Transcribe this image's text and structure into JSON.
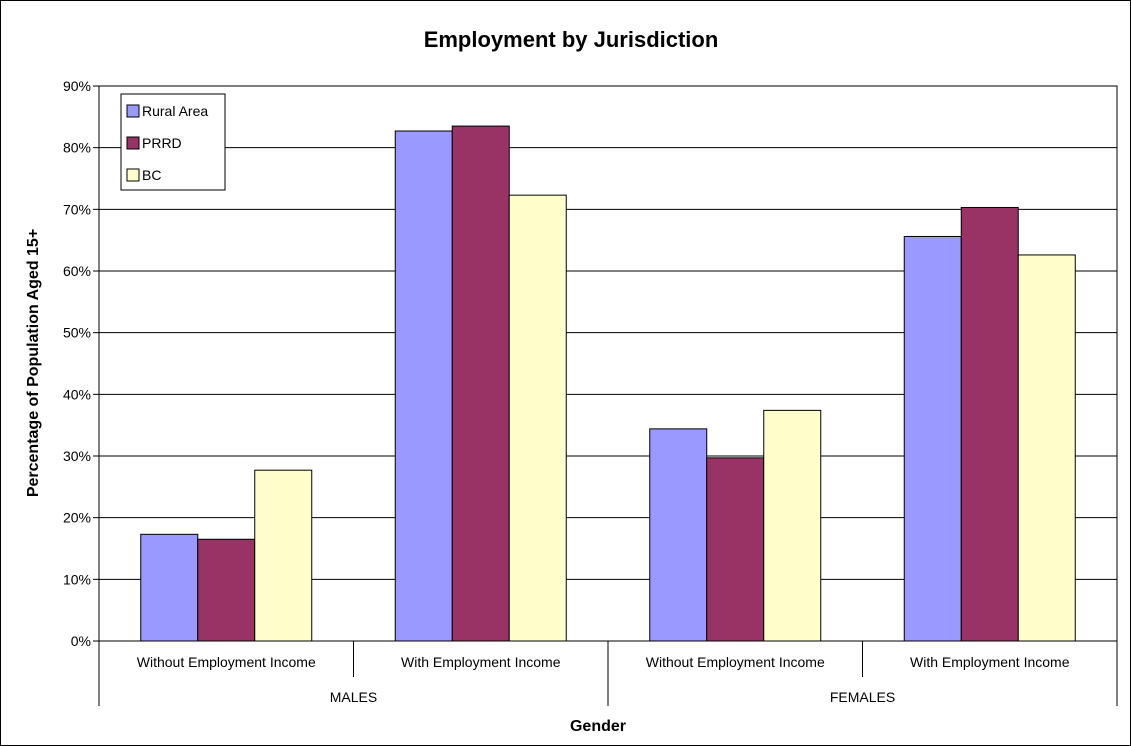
{
  "chart_data": {
    "type": "bar",
    "title": "Employment by Jurisdiction",
    "xlabel": "Gender",
    "ylabel": "Percentage of Population Aged 15+",
    "ylim": [
      0,
      90
    ],
    "yticks": [
      "0%",
      "10%",
      "20%",
      "30%",
      "40%",
      "50%",
      "60%",
      "70%",
      "80%",
      "90%"
    ],
    "grid": true,
    "legend_position": "top-left",
    "groups": [
      "MALES",
      "FEMALES"
    ],
    "categories": [
      "Without Employment Income",
      "With Employment Income",
      "Without Employment Income",
      "With Employment Income"
    ],
    "series": [
      {
        "name": "Rural Area",
        "color": "#9999ff",
        "values": [
          17.3,
          82.7,
          34.4,
          65.6
        ]
      },
      {
        "name": "PRRD",
        "color": "#993366",
        "values": [
          16.5,
          83.5,
          29.7,
          70.3
        ]
      },
      {
        "name": "BC",
        "color": "#ffffcc",
        "values": [
          27.7,
          72.3,
          37.4,
          62.6
        ]
      }
    ]
  }
}
